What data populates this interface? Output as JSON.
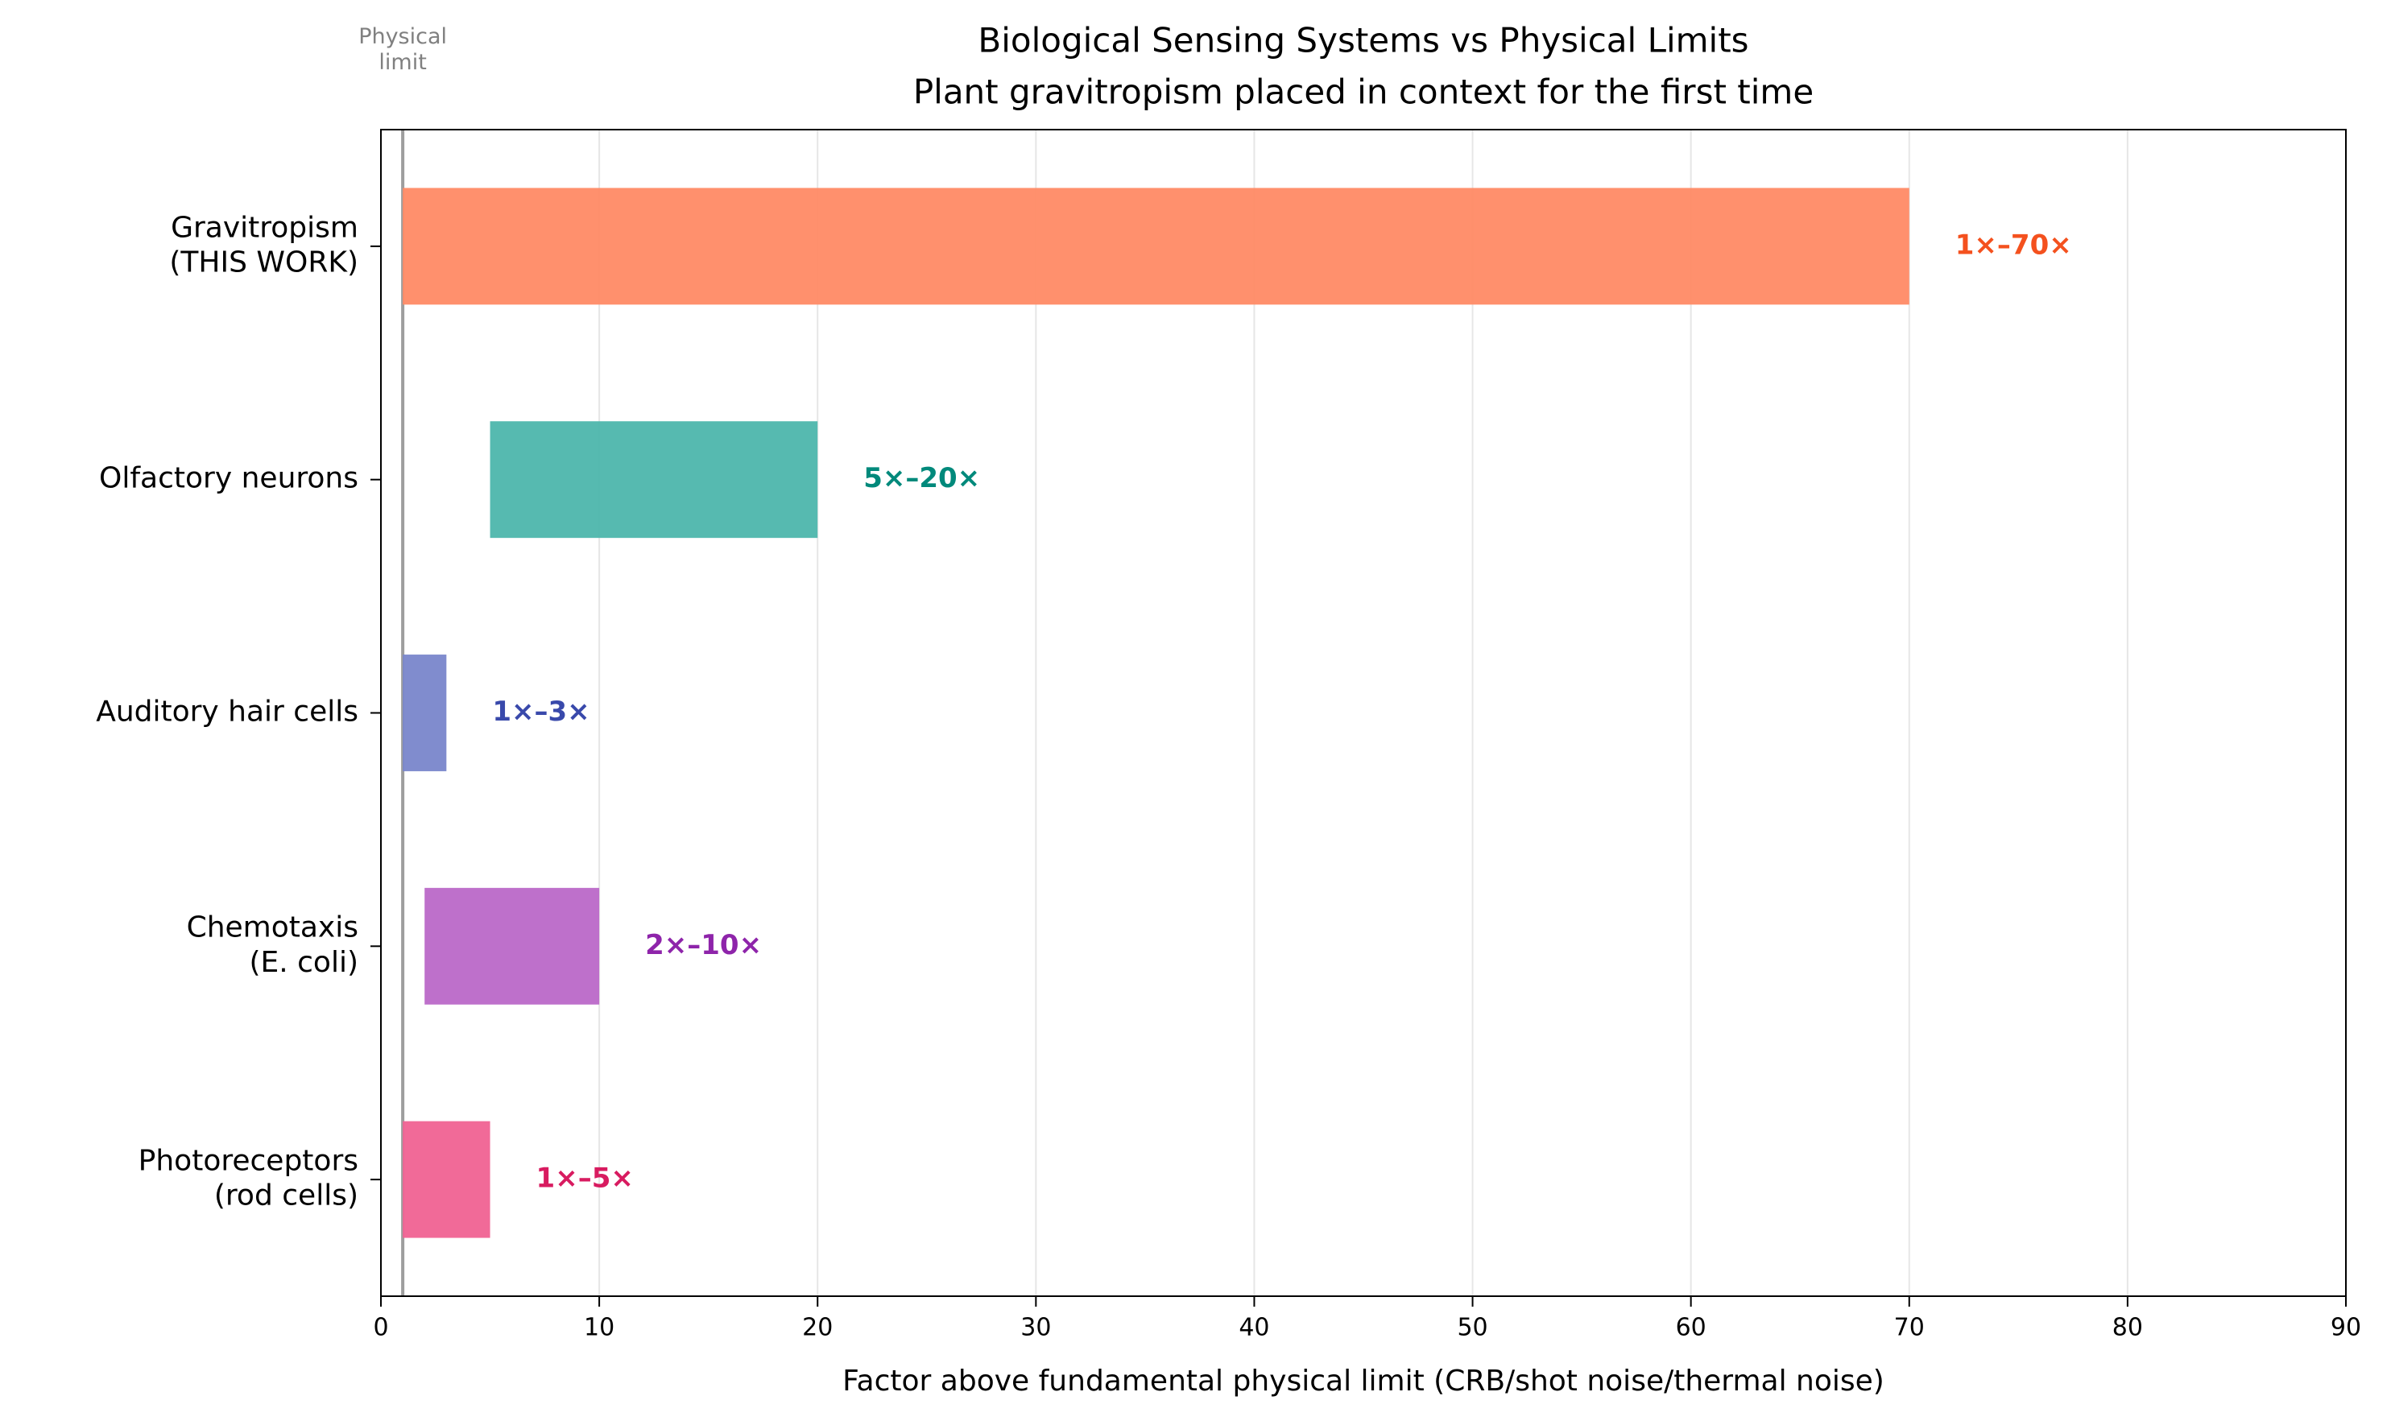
{
  "chart_data": {
    "type": "range-bar",
    "title": "Biological Sensing Systems vs Physical Limits",
    "subtitle": "Plant gravitropism placed in context for the first time",
    "x_label": "Factor above fundamental physical limit (CRB/shot noise/thermal noise)",
    "categories": [
      "Gravitropism\n(THIS WORK)",
      "Olfactory neurons",
      "Auditory hair cells",
      "Chemotaxis\n(E. coli)",
      "Photoreceptors\n(rod cells)"
    ],
    "low": [
      1,
      5,
      1,
      2,
      1
    ],
    "high": [
      70,
      20,
      3,
      10,
      5
    ],
    "value_labels": [
      "1×–70×",
      "5×–20×",
      "1×–3×",
      "2×–10×",
      "1×–5×"
    ],
    "colors": [
      "#ff8a65",
      "#4db6ac",
      "#7986cb",
      "#ba68c8",
      "#f06292"
    ],
    "label_colors": [
      "#f4511e",
      "#00897b",
      "#3949ab",
      "#8e24aa",
      "#d81b60"
    ],
    "reference_line": {
      "value": 1,
      "label": "Physical\nlimit",
      "color": "#9e9e9e"
    },
    "xlim": [
      0,
      90
    ],
    "xticks": [
      0,
      10,
      20,
      30,
      40,
      50,
      60,
      70,
      80,
      90
    ],
    "grid": true
  }
}
